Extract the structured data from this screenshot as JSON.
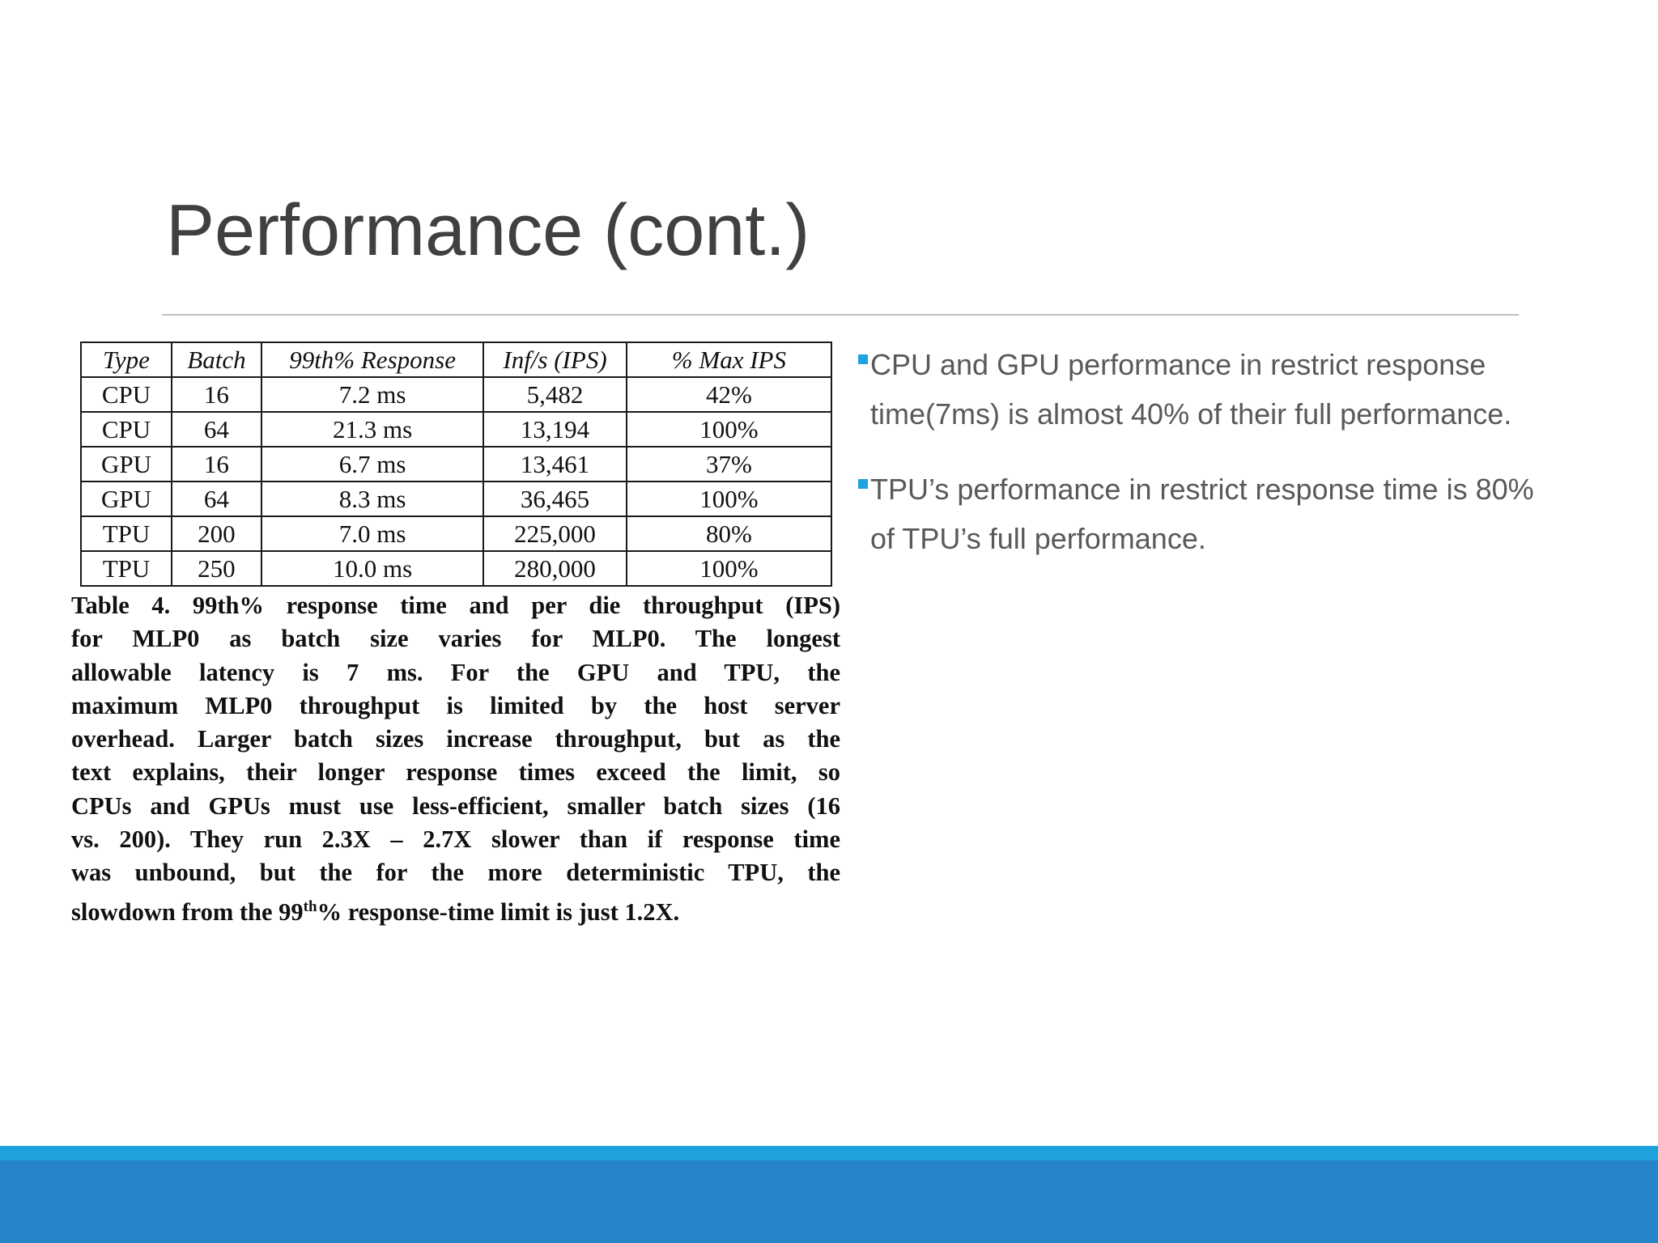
{
  "slide": {
    "title": "Performance (cont.)"
  },
  "table": {
    "headers": [
      "Type",
      "Batch",
      "99th% Response",
      "Inf/s (IPS)",
      "% Max IPS"
    ],
    "rows": [
      [
        "CPU",
        "16",
        "7.2 ms",
        "5,482",
        "42%"
      ],
      [
        "CPU",
        "64",
        "21.3 ms",
        "13,194",
        "100%"
      ],
      [
        "GPU",
        "16",
        "6.7 ms",
        "13,461",
        "37%"
      ],
      [
        "GPU",
        "64",
        "8.3 ms",
        "36,465",
        "100%"
      ],
      [
        "TPU",
        "200",
        "7.0 ms",
        "225,000",
        "80%"
      ],
      [
        "TPU",
        "250",
        "10.0 ms",
        "280,000",
        "100%"
      ]
    ]
  },
  "caption": {
    "lines": [
      "Table 4. 99th% response time and per die throughput (IPS)",
      "for MLP0 as batch size varies for MLP0. The longest",
      "allowable latency is 7 ms. For the GPU and TPU, the",
      "maximum MLP0 throughput is limited by the host server",
      "overhead. Larger batch sizes increase throughput, but as the",
      "text explains, their longer response times exceed the limit, so",
      "CPUs and GPUs must use less-efficient, smaller batch sizes (16",
      "vs. 200). They run 2.3X – 2.7X slower than if response time",
      "was unbound, but the for the more deterministic TPU, the"
    ],
    "last_line_before": "slowdown from the 99",
    "last_line_sup": "th",
    "last_line_after": "% response-time limit is just 1.2X."
  },
  "bullets": [
    {
      "icon": "square-bullet-icon",
      "line1": "CPU and GPU performance in restrict response",
      "line2": "time(7ms) is almost 40% of their full performance."
    },
    {
      "icon": "square-bullet-icon",
      "line1": "TPU’s performance in restrict response time is 80%",
      "line2": "of TPU’s full performance."
    }
  ],
  "colors": {
    "accent": "#1ea2de",
    "footer": "#2585c8",
    "title_text": "#404040",
    "body_text": "#595959"
  }
}
